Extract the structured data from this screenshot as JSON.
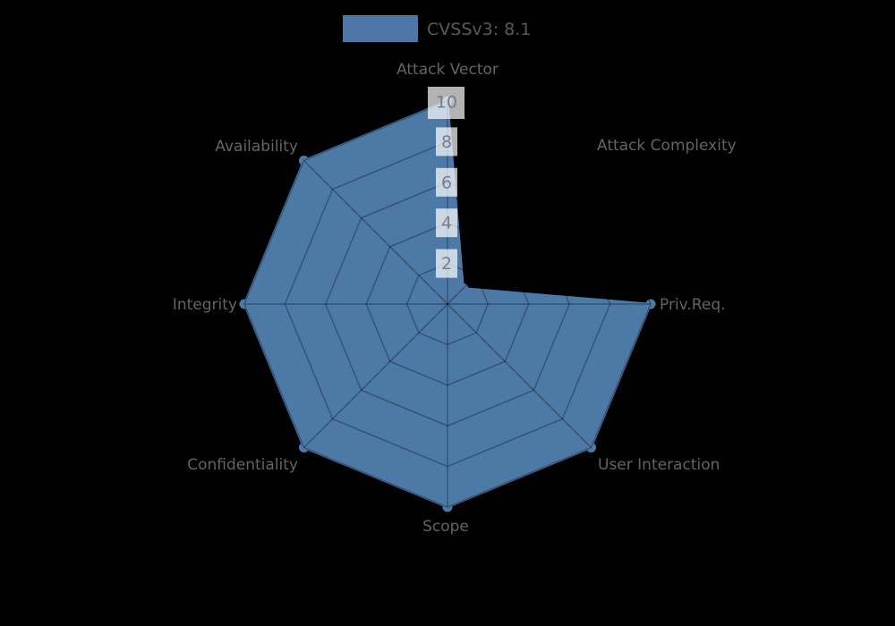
{
  "page": {
    "background_color": "#000000"
  },
  "chart_data": {
    "type": "radar",
    "title": "",
    "legend": {
      "label": "CVSSv3: 8.1",
      "swatch_color": "#4d77a7",
      "position": "top-center"
    },
    "categories": [
      "Attack Vector",
      "Attack Complexity",
      "Priv.Req.",
      "User Interaction",
      "Scope",
      "Confidentiality",
      "Integrity",
      "Availability"
    ],
    "series": [
      {
        "name": "CVSSv3: 8.1",
        "values": [
          10,
          1.1,
          10,
          10,
          10,
          10,
          10,
          10
        ],
        "fill_color": "#4d79a7",
        "marker": "circle"
      }
    ],
    "radial_ticks": [
      "2",
      "4",
      "6",
      "8",
      "10"
    ],
    "rlim": [
      0,
      10
    ],
    "axes_start": "top",
    "direction": "clockwise",
    "grid": true,
    "grid_shape": "octagon",
    "colors": {
      "axis_label": "#646464",
      "tick_text": "#7d7d86",
      "tick_box": "rgba(255,255,255,0.7)",
      "grid_line": "rgba(0,0,0,0.32)",
      "legend_text": "#5a5a5a"
    }
  }
}
